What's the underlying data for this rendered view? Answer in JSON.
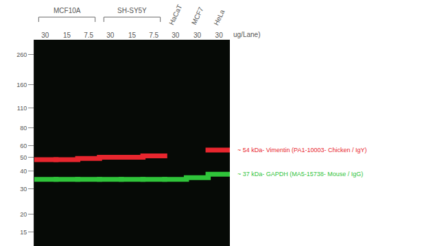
{
  "chart_data": {
    "type": "scatter",
    "marker": "band",
    "log": "y",
    "grid": false,
    "categories": [
      "30",
      "15",
      "7.5",
      "30",
      "15",
      "7.5",
      "30",
      "30",
      "30"
    ],
    "groups": [
      {
        "label": "MCF10A",
        "lanes": [
          0,
          1,
          2
        ]
      },
      {
        "label": "SH-SY5Y",
        "lanes": [
          3,
          4,
          5
        ]
      },
      {
        "label": "HaCaT",
        "lanes": [
          6
        ]
      },
      {
        "label": "MCF7",
        "lanes": [
          7
        ]
      },
      {
        "label": "HeLa",
        "lanes": [
          8
        ]
      }
    ],
    "unit_label": "ug/Lane)",
    "ylim": [
      12,
      330
    ],
    "yticks": [
      15,
      20,
      30,
      40,
      50,
      60,
      80,
      110,
      160,
      260
    ],
    "series": [
      {
        "name": "~ 54 kDa- Vimentin (PA1-10003- Chicken / IgY)",
        "color": "#e8262e",
        "values": [
          48,
          48,
          49,
          50,
          50,
          51,
          null,
          null,
          56
        ]
      },
      {
        "name": "~ 37 kDa- GAPDH (MA5-15738- Mouse / IgG)",
        "color": "#2fc43a",
        "values": [
          35,
          35,
          35,
          35,
          35,
          35,
          35,
          36,
          38
        ]
      }
    ]
  }
}
